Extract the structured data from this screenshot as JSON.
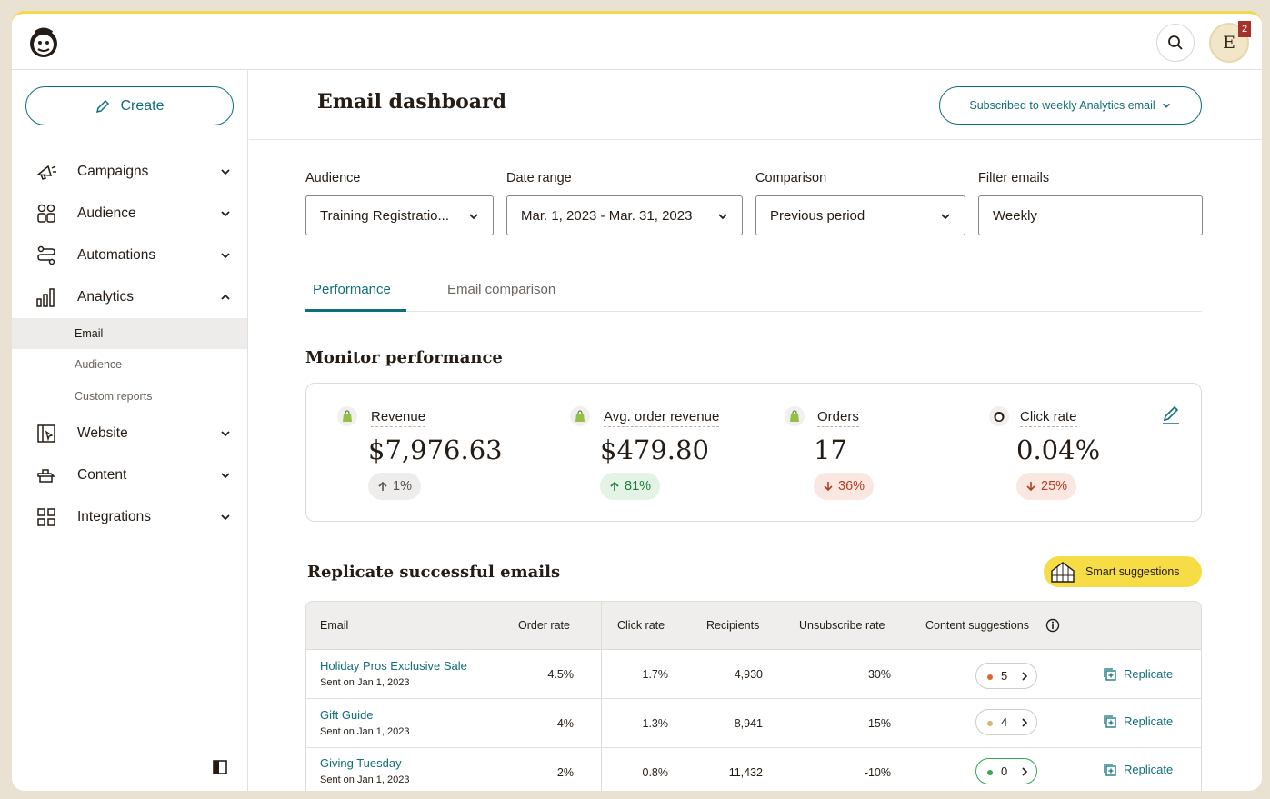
{
  "header": {
    "notification_count": "2",
    "avatar_initial": "E"
  },
  "sidebar": {
    "create_label": "Create",
    "items": [
      {
        "label": "Campaigns",
        "icon": "megaphone-icon"
      },
      {
        "label": "Audience",
        "icon": "audience-icon"
      },
      {
        "label": "Automations",
        "icon": "automation-flow-icon"
      },
      {
        "label": "Analytics",
        "icon": "bar-chart-icon"
      },
      {
        "label": "Website",
        "icon": "website-icon"
      },
      {
        "label": "Content",
        "icon": "content-icon"
      },
      {
        "label": "Integrations",
        "icon": "grid-icon"
      }
    ],
    "analytics_sub": [
      {
        "label": "Email",
        "active": true
      },
      {
        "label": "Audience",
        "active": false
      },
      {
        "label": "Custom reports",
        "active": false
      }
    ]
  },
  "main": {
    "title": "Email dashboard",
    "subscribe_label": "Subscribed to weekly Analytics email",
    "filters": {
      "audience": {
        "label": "Audience",
        "value": "Training Registratio..."
      },
      "date_range": {
        "label": "Date range",
        "value": "Mar. 1, 2023 - Mar. 31, 2023"
      },
      "comparison": {
        "label": "Comparison",
        "value": "Previous period"
      },
      "filter_emails": {
        "label": "Filter emails",
        "value": "Weekly"
      }
    },
    "tabs": [
      {
        "label": "Performance",
        "active": true
      },
      {
        "label": "Email comparison",
        "active": false
      }
    ],
    "monitor_title": "Monitor performance",
    "metrics": [
      {
        "label": "Revenue",
        "value": "$7,976.63",
        "delta": "1%",
        "trend": "neutral"
      },
      {
        "label": "Avg. order revenue",
        "value": "$479.80",
        "delta": "81%",
        "trend": "up"
      },
      {
        "label": "Orders",
        "value": "17",
        "delta": "36%",
        "trend": "down"
      },
      {
        "label": "Click rate",
        "value": "0.04%",
        "delta": "25%",
        "trend": "down"
      }
    ],
    "replicate_title": "Replicate successful emails",
    "smart_suggestions_label": "Smart suggestions",
    "table": {
      "headers": [
        "Email",
        "Order rate",
        "Click rate",
        "Recipients",
        "Unsubscribe rate",
        "Content suggestions"
      ],
      "rows": [
        {
          "name": "Holiday Pros Exclusive Sale",
          "sent": "Sent on Jan 1, 2023",
          "order_rate": "4.5%",
          "click_rate": "1.7%",
          "recipients": "4,930",
          "unsub_rate": "30%",
          "suggestions": "5",
          "dot": "#e0662e"
        },
        {
          "name": "Gift Guide",
          "sent": "Sent on Jan 1, 2023",
          "order_rate": "4%",
          "click_rate": "1.3%",
          "recipients": "8,941",
          "unsub_rate": "15%",
          "suggestions": "4",
          "dot": "#e0b070"
        },
        {
          "name": "Giving Tuesday",
          "sent": "Sent on Jan 1, 2023",
          "order_rate": "2%",
          "click_rate": "0.8%",
          "recipients": "11,432",
          "unsub_rate": "-10%",
          "suggestions": "0",
          "dot": "#34a853"
        }
      ],
      "replicate_label": "Replicate"
    }
  }
}
